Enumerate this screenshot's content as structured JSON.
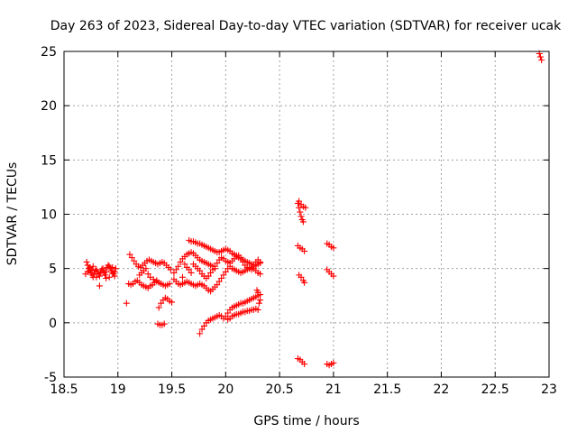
{
  "chart_data": {
    "type": "scatter",
    "title": "Day 263 of 2023, Sidereal Day-to-day VTEC variation (SDTVAR) for receiver ucak",
    "xlabel": "GPS time / hours",
    "ylabel": "SDTVAR / TECUs",
    "xlim": [
      18.5,
      23
    ],
    "ylim": [
      -5,
      25
    ],
    "xticks": [
      18.5,
      19,
      19.5,
      20,
      20.5,
      21,
      21.5,
      22,
      22.5,
      23
    ],
    "xtick_labels": [
      "18.5",
      "19",
      "19.5",
      "20",
      "20.5",
      "21",
      "21.5",
      "22",
      "22.5",
      "23"
    ],
    "yticks": [
      -5,
      0,
      5,
      10,
      15,
      20,
      25
    ],
    "ytick_labels": [
      "-5",
      "0",
      "5",
      "10",
      "15",
      "20",
      "25"
    ],
    "grid": true,
    "marker": "plus",
    "color": "#ff0000",
    "series": [
      {
        "name": "SDTVAR",
        "points": [
          [
            18.71,
            5.6
          ],
          [
            18.72,
            5.3
          ],
          [
            18.73,
            5.0
          ],
          [
            18.74,
            4.8
          ],
          [
            18.75,
            4.6
          ],
          [
            18.76,
            4.4
          ],
          [
            18.77,
            4.2
          ],
          [
            18.78,
            4.5
          ],
          [
            18.79,
            4.8
          ],
          [
            18.8,
            4.9
          ],
          [
            18.81,
            4.7
          ],
          [
            18.82,
            4.5
          ],
          [
            18.83,
            4.3
          ],
          [
            18.84,
            4.6
          ],
          [
            18.85,
            4.9
          ],
          [
            18.86,
            4.8
          ],
          [
            18.87,
            4.6
          ],
          [
            18.88,
            4.4
          ],
          [
            18.89,
            4.7
          ],
          [
            18.9,
            5.1
          ],
          [
            18.91,
            5.3
          ],
          [
            18.92,
            5.2
          ],
          [
            18.93,
            5.0
          ],
          [
            18.94,
            4.8
          ],
          [
            18.95,
            4.6
          ],
          [
            18.96,
            4.5
          ],
          [
            18.97,
            4.7
          ],
          [
            18.98,
            5.0
          ],
          [
            18.72,
            4.7
          ],
          [
            18.74,
            5.1
          ],
          [
            18.77,
            5.2
          ],
          [
            18.8,
            4.2
          ],
          [
            18.83,
            3.4
          ],
          [
            18.86,
            5.0
          ],
          [
            18.89,
            4.1
          ],
          [
            18.92,
            4.2
          ],
          [
            18.95,
            5.1
          ],
          [
            18.97,
            4.3
          ],
          [
            18.7,
            4.5
          ],
          [
            18.76,
            4.9
          ],
          [
            19.11,
            6.3
          ],
          [
            19.13,
            6.0
          ],
          [
            19.15,
            5.7
          ],
          [
            19.17,
            5.4
          ],
          [
            19.19,
            5.2
          ],
          [
            19.21,
            5.1
          ],
          [
            19.23,
            5.3
          ],
          [
            19.25,
            5.5
          ],
          [
            19.27,
            5.7
          ],
          [
            19.29,
            5.8
          ],
          [
            19.31,
            5.7
          ],
          [
            19.33,
            5.6
          ],
          [
            19.35,
            5.5
          ],
          [
            19.37,
            5.4
          ],
          [
            19.39,
            5.5
          ],
          [
            19.41,
            5.6
          ],
          [
            19.43,
            5.5
          ],
          [
            19.45,
            5.3
          ],
          [
            19.47,
            5.1
          ],
          [
            19.49,
            4.9
          ],
          [
            19.1,
            3.6
          ],
          [
            19.12,
            3.5
          ],
          [
            19.14,
            3.6
          ],
          [
            19.16,
            3.8
          ],
          [
            19.18,
            3.9
          ],
          [
            19.2,
            3.7
          ],
          [
            19.22,
            3.5
          ],
          [
            19.24,
            3.4
          ],
          [
            19.26,
            3.3
          ],
          [
            19.28,
            3.2
          ],
          [
            19.3,
            3.4
          ],
          [
            19.32,
            3.5
          ],
          [
            19.34,
            3.7
          ],
          [
            19.36,
            3.8
          ],
          [
            19.38,
            3.7
          ],
          [
            19.4,
            3.6
          ],
          [
            19.42,
            3.5
          ],
          [
            19.44,
            3.4
          ],
          [
            19.46,
            3.5
          ],
          [
            19.48,
            3.6
          ],
          [
            19.08,
            1.8
          ],
          [
            19.38,
            1.4
          ],
          [
            19.4,
            1.8
          ],
          [
            19.42,
            2.1
          ],
          [
            19.44,
            2.3
          ],
          [
            19.46,
            2.2
          ],
          [
            19.48,
            2.0
          ],
          [
            19.5,
            1.9
          ],
          [
            19.37,
            -0.1
          ],
          [
            19.39,
            -0.2
          ],
          [
            19.41,
            -0.2
          ],
          [
            19.43,
            -0.1
          ],
          [
            19.2,
            4.4
          ],
          [
            19.22,
            4.6
          ],
          [
            19.24,
            4.8
          ],
          [
            19.26,
            5.0
          ],
          [
            19.28,
            4.5
          ],
          [
            19.3,
            4.2
          ],
          [
            19.33,
            4.0
          ],
          [
            19.36,
            3.9
          ],
          [
            19.52,
            4.6
          ],
          [
            19.54,
            4.9
          ],
          [
            19.56,
            5.2
          ],
          [
            19.58,
            5.6
          ],
          [
            19.6,
            5.9
          ],
          [
            19.62,
            6.1
          ],
          [
            19.64,
            6.3
          ],
          [
            19.66,
            6.4
          ],
          [
            19.68,
            6.5
          ],
          [
            19.7,
            6.4
          ],
          [
            19.72,
            6.2
          ],
          [
            19.74,
            6.0
          ],
          [
            19.76,
            5.8
          ],
          [
            19.78,
            5.7
          ],
          [
            19.8,
            5.6
          ],
          [
            19.82,
            5.5
          ],
          [
            19.84,
            5.4
          ],
          [
            19.86,
            5.3
          ],
          [
            19.88,
            5.2
          ],
          [
            19.9,
            5.0
          ],
          [
            19.66,
            7.6
          ],
          [
            19.68,
            7.5
          ],
          [
            19.7,
            7.5
          ],
          [
            19.72,
            7.4
          ],
          [
            19.74,
            7.3
          ],
          [
            19.76,
            7.3
          ],
          [
            19.78,
            7.2
          ],
          [
            19.8,
            7.1
          ],
          [
            19.82,
            7.0
          ],
          [
            19.84,
            6.9
          ],
          [
            19.86,
            6.8
          ],
          [
            19.88,
            6.7
          ],
          [
            19.9,
            6.6
          ],
          [
            19.92,
            6.5
          ],
          [
            19.94,
            6.5
          ],
          [
            19.96,
            6.6
          ],
          [
            19.98,
            6.7
          ],
          [
            20.0,
            6.8
          ],
          [
            20.02,
            6.7
          ],
          [
            20.04,
            6.6
          ],
          [
            20.06,
            6.4
          ],
          [
            20.08,
            6.3
          ],
          [
            20.1,
            6.2
          ],
          [
            20.12,
            6.0
          ],
          [
            20.14,
            5.9
          ],
          [
            20.16,
            5.8
          ],
          [
            20.18,
            5.7
          ],
          [
            20.2,
            5.6
          ],
          [
            20.22,
            5.5
          ],
          [
            20.24,
            5.4
          ],
          [
            20.26,
            5.3
          ],
          [
            20.28,
            5.3
          ],
          [
            20.3,
            5.4
          ],
          [
            20.32,
            5.5
          ],
          [
            19.52,
            4.0
          ],
          [
            19.54,
            3.8
          ],
          [
            19.56,
            3.6
          ],
          [
            19.58,
            3.5
          ],
          [
            19.6,
            3.6
          ],
          [
            19.62,
            3.7
          ],
          [
            19.64,
            3.8
          ],
          [
            19.66,
            3.7
          ],
          [
            19.68,
            3.6
          ],
          [
            19.7,
            3.5
          ],
          [
            19.72,
            3.4
          ],
          [
            19.74,
            3.5
          ],
          [
            19.76,
            3.6
          ],
          [
            19.78,
            3.5
          ],
          [
            19.8,
            3.4
          ],
          [
            19.82,
            3.2
          ],
          [
            19.84,
            3.0
          ],
          [
            19.86,
            2.9
          ],
          [
            19.88,
            3.1
          ],
          [
            19.9,
            3.3
          ],
          [
            19.92,
            3.5
          ],
          [
            19.94,
            3.8
          ],
          [
            19.96,
            4.1
          ],
          [
            19.98,
            4.4
          ],
          [
            20.0,
            4.7
          ],
          [
            20.02,
            5.0
          ],
          [
            20.04,
            5.2
          ],
          [
            20.06,
            5.0
          ],
          [
            20.08,
            4.9
          ],
          [
            20.1,
            4.8
          ],
          [
            20.12,
            4.7
          ],
          [
            20.14,
            4.6
          ],
          [
            20.16,
            4.7
          ],
          [
            20.18,
            4.8
          ],
          [
            20.2,
            4.9
          ],
          [
            20.22,
            5.0
          ],
          [
            20.24,
            5.1
          ],
          [
            20.26,
            5.0
          ],
          [
            20.28,
            4.8
          ],
          [
            20.3,
            4.6
          ],
          [
            20.32,
            4.5
          ],
          [
            19.76,
            -1.0
          ],
          [
            19.78,
            -0.6
          ],
          [
            19.8,
            -0.3
          ],
          [
            19.82,
            0.0
          ],
          [
            19.84,
            0.2
          ],
          [
            19.86,
            0.3
          ],
          [
            19.88,
            0.4
          ],
          [
            19.9,
            0.5
          ],
          [
            19.92,
            0.6
          ],
          [
            19.94,
            0.7
          ],
          [
            19.96,
            0.6
          ],
          [
            19.98,
            0.4
          ],
          [
            20.0,
            0.6
          ],
          [
            20.02,
            0.9
          ],
          [
            20.04,
            1.2
          ],
          [
            20.06,
            1.4
          ],
          [
            20.08,
            1.5
          ],
          [
            20.1,
            1.6
          ],
          [
            20.12,
            1.7
          ],
          [
            20.14,
            1.8
          ],
          [
            20.16,
            1.8
          ],
          [
            20.18,
            1.9
          ],
          [
            20.2,
            2.0
          ],
          [
            20.22,
            2.1
          ],
          [
            20.24,
            2.2
          ],
          [
            20.26,
            2.3
          ],
          [
            20.28,
            2.4
          ],
          [
            20.3,
            2.5
          ],
          [
            20.32,
            2.6
          ],
          [
            20.02,
            0.3
          ],
          [
            20.04,
            0.4
          ],
          [
            20.06,
            0.6
          ],
          [
            20.08,
            0.7
          ],
          [
            20.1,
            0.8
          ],
          [
            20.12,
            0.8
          ],
          [
            20.14,
            0.9
          ],
          [
            20.16,
            1.0
          ],
          [
            20.18,
            1.0
          ],
          [
            20.2,
            1.1
          ],
          [
            20.22,
            1.1
          ],
          [
            20.24,
            1.2
          ],
          [
            20.26,
            1.2
          ],
          [
            20.28,
            1.3
          ],
          [
            20.3,
            1.2
          ],
          [
            20.31,
            1.8
          ],
          [
            20.32,
            2.1
          ],
          [
            20.3,
            2.8
          ],
          [
            20.29,
            3.0
          ],
          [
            19.84,
            4.3
          ],
          [
            19.86,
            4.6
          ],
          [
            19.88,
            4.9
          ],
          [
            19.9,
            5.2
          ],
          [
            19.92,
            5.5
          ],
          [
            19.94,
            5.8
          ],
          [
            19.96,
            6.0
          ],
          [
            19.98,
            5.9
          ],
          [
            20.0,
            5.7
          ],
          [
            20.02,
            5.6
          ],
          [
            20.04,
            5.5
          ],
          [
            20.06,
            5.7
          ],
          [
            20.08,
            5.9
          ],
          [
            20.1,
            6.1
          ],
          [
            20.12,
            6.2
          ],
          [
            20.14,
            6.0
          ],
          [
            20.16,
            5.6
          ],
          [
            20.18,
            5.3
          ],
          [
            20.2,
            5.1
          ],
          [
            20.22,
            5.0
          ],
          [
            20.24,
            4.9
          ],
          [
            20.26,
            5.2
          ],
          [
            20.28,
            5.6
          ],
          [
            20.3,
            5.8
          ],
          [
            20.32,
            5.6
          ],
          [
            19.7,
            5.4
          ],
          [
            19.72,
            5.2
          ],
          [
            19.74,
            5.0
          ],
          [
            19.76,
            4.8
          ],
          [
            19.78,
            4.5
          ],
          [
            19.8,
            4.3
          ],
          [
            19.82,
            4.1
          ],
          [
            19.62,
            5.4
          ],
          [
            19.64,
            5.1
          ],
          [
            19.66,
            4.9
          ],
          [
            19.68,
            4.6
          ],
          [
            19.6,
            4.2
          ],
          [
            20.67,
            11.0
          ],
          [
            20.68,
            10.6
          ],
          [
            20.69,
            10.2
          ],
          [
            20.7,
            9.8
          ],
          [
            20.71,
            9.5
          ],
          [
            20.72,
            9.3
          ],
          [
            20.68,
            11.2
          ],
          [
            20.7,
            10.9
          ],
          [
            20.72,
            10.7
          ],
          [
            20.74,
            10.6
          ],
          [
            20.67,
            7.1
          ],
          [
            20.69,
            6.9
          ],
          [
            20.71,
            6.8
          ],
          [
            20.73,
            6.6
          ],
          [
            20.68,
            4.4
          ],
          [
            20.7,
            4.2
          ],
          [
            20.72,
            3.9
          ],
          [
            20.73,
            3.7
          ],
          [
            20.67,
            -3.3
          ],
          [
            20.69,
            -3.4
          ],
          [
            20.71,
            -3.6
          ],
          [
            20.73,
            -3.8
          ],
          [
            20.94,
            7.3
          ],
          [
            20.96,
            7.2
          ],
          [
            20.98,
            7.0
          ],
          [
            21.0,
            6.9
          ],
          [
            20.94,
            4.9
          ],
          [
            20.96,
            4.7
          ],
          [
            20.98,
            4.5
          ],
          [
            21.0,
            4.3
          ],
          [
            20.94,
            -3.8
          ],
          [
            20.96,
            -3.9
          ],
          [
            20.98,
            -3.8
          ],
          [
            21.0,
            -3.7
          ],
          [
            22.91,
            24.8
          ],
          [
            22.92,
            24.5
          ],
          [
            22.93,
            24.2
          ]
        ]
      }
    ]
  }
}
